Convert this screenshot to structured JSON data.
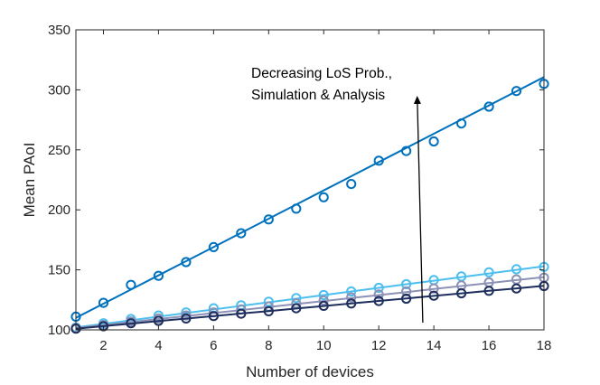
{
  "chart_data": {
    "type": "line",
    "title": "",
    "xlabel": "Number of devices",
    "ylabel": "Mean PAoI",
    "xlim": [
      1,
      18
    ],
    "ylim": [
      100,
      350
    ],
    "xticks": [
      2,
      4,
      6,
      8,
      10,
      12,
      14,
      16,
      18
    ],
    "yticks": [
      100,
      150,
      200,
      250,
      300,
      350
    ],
    "x": [
      1,
      2,
      3,
      4,
      5,
      6,
      7,
      8,
      9,
      10,
      11,
      12,
      13,
      14,
      15,
      16,
      17,
      18
    ],
    "grid": false,
    "legend": "none",
    "annotation": {
      "lines": [
        "Decreasing LoS Prob.,",
        "Simulation & Analysis"
      ],
      "arrow_from": [
        13.6,
        106
      ],
      "arrow_to": [
        13.4,
        292
      ]
    },
    "series": [
      {
        "name": "series-1",
        "color": "#0072BD",
        "analysis": [
          110,
          121.8,
          133.6,
          145.4,
          157.2,
          169,
          180.8,
          192.6,
          204.4,
          216.2,
          228,
          239.8,
          251.6,
          263.4,
          275.2,
          287,
          298.8,
          310.6
        ],
        "simulation": [
          111,
          122.5,
          137.5,
          145,
          156.5,
          169,
          180.5,
          192,
          201,
          210.5,
          221.5,
          241,
          249,
          257,
          272,
          286,
          299,
          305
        ]
      },
      {
        "name": "series-2",
        "color": "#4DBEEE",
        "analysis": [
          102,
          105,
          108,
          111,
          114,
          117,
          120,
          123,
          126,
          129,
          132,
          135,
          138,
          141,
          144,
          147,
          150,
          153
        ],
        "simulation": [
          102,
          105.5,
          109,
          112,
          114.5,
          118,
          120.5,
          123.5,
          126.5,
          129,
          132,
          135,
          138,
          141.5,
          144.5,
          148,
          150.5,
          152.5
        ]
      },
      {
        "name": "series-3",
        "color": "#8C91B5",
        "analysis": [
          101.5,
          104,
          106.5,
          109,
          111.5,
          114,
          116.5,
          119,
          121.5,
          124,
          126.5,
          129,
          131.5,
          134,
          136.5,
          139,
          141.5,
          144
        ],
        "simulation": [
          101.5,
          104,
          107,
          109.5,
          112,
          114.5,
          117,
          119.5,
          122,
          124.5,
          127,
          129.5,
          132,
          134.5,
          137,
          139.5,
          142,
          143.5
        ]
      },
      {
        "name": "series-4",
        "color": "#1E2F5E",
        "analysis": [
          101,
          103.1,
          105.2,
          107.3,
          109.4,
          111.5,
          113.6,
          115.7,
          117.8,
          119.9,
          122,
          124.1,
          126.2,
          128.3,
          130.4,
          132.5,
          134.6,
          136.7
        ],
        "simulation": [
          101,
          103,
          105.5,
          107.5,
          109.5,
          111.5,
          113.5,
          115.5,
          118,
          120,
          122,
          124,
          126,
          128.5,
          130.5,
          132.5,
          134.5,
          136.5
        ]
      }
    ]
  }
}
